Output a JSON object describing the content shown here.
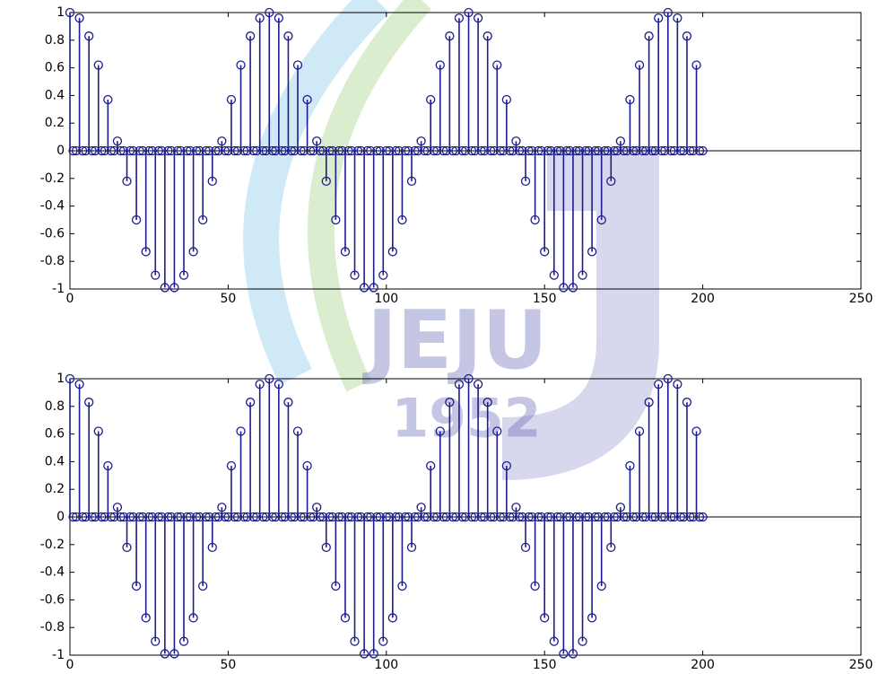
{
  "watermark": [
    "JEJU",
    "1952"
  ],
  "chart_data": [
    {
      "type": "stem",
      "color": "#1c1c8c",
      "xlim": [
        0,
        250
      ],
      "xticks": [
        0,
        50,
        100,
        150,
        200,
        250
      ],
      "ylim": [
        -1,
        1
      ],
      "yticks": [
        -1,
        -0.8,
        -0.6,
        -0.4,
        -0.2,
        0,
        0.2,
        0.4,
        0.6,
        0.8,
        1
      ],
      "x": [
        0,
        1,
        2,
        3,
        4,
        5,
        6,
        7,
        8,
        9,
        10,
        11,
        12,
        13,
        14,
        15,
        16,
        17,
        18,
        19,
        20,
        21,
        22,
        23,
        24,
        25,
        26,
        27,
        28,
        29,
        30,
        31,
        32,
        33,
        34,
        35,
        36,
        37,
        38,
        39,
        40,
        41,
        42,
        43,
        44,
        45,
        46,
        47,
        48,
        49,
        50,
        51,
        52,
        53,
        54,
        55,
        56,
        57,
        58,
        59,
        60,
        61,
        62,
        63,
        64,
        65,
        66,
        67,
        68,
        69,
        70,
        71,
        72,
        73,
        74,
        75,
        76,
        77,
        78,
        79,
        80,
        81,
        82,
        83,
        84,
        85,
        86,
        87,
        88,
        89,
        90,
        91,
        92,
        93,
        94,
        95,
        96,
        97,
        98,
        99,
        100,
        101,
        102,
        103,
        104,
        105,
        106,
        107,
        108,
        109,
        110,
        111,
        112,
        113,
        114,
        115,
        116,
        117,
        118,
        119,
        120,
        121,
        122,
        123,
        124,
        125,
        126,
        127,
        128,
        129,
        130,
        131,
        132,
        133,
        134,
        135,
        136,
        137,
        138,
        139,
        140,
        141,
        142,
        143,
        144,
        145,
        146,
        147,
        148,
        149,
        150,
        151,
        152,
        153,
        154,
        155,
        156,
        157,
        158,
        159,
        160,
        161,
        162,
        163,
        164,
        165,
        166,
        167,
        168,
        169,
        170,
        171,
        172,
        173,
        174,
        175,
        176,
        177,
        178,
        179,
        180,
        181,
        182,
        183,
        184,
        185,
        186,
        187,
        188,
        189,
        190,
        191,
        192,
        193,
        194,
        195,
        196,
        197,
        198,
        199,
        200
      ],
      "values": [
        1,
        0,
        0,
        0.96,
        0,
        0,
        0.83,
        0,
        0,
        0.62,
        0,
        0,
        0.37,
        0,
        0,
        0.07,
        0,
        0,
        -0.22,
        0,
        0,
        -0.5,
        0,
        0,
        -0.73,
        0,
        0,
        -0.9,
        0,
        0,
        -0.99,
        0,
        0,
        -0.99,
        0,
        0,
        -0.9,
        0,
        0,
        -0.73,
        0,
        0,
        -0.5,
        0,
        0,
        -0.22,
        0,
        0,
        0.07,
        0,
        0,
        0.37,
        0,
        0,
        0.62,
        0,
        0,
        0.83,
        0,
        0,
        0.96,
        0,
        0,
        1,
        0,
        0,
        0.96,
        0,
        0,
        0.83,
        0,
        0,
        0.62,
        0,
        0,
        0.37,
        0,
        0,
        0.07,
        0,
        0,
        -0.22,
        0,
        0,
        -0.5,
        0,
        0,
        -0.73,
        0,
        0,
        -0.9,
        0,
        0,
        -0.99,
        0,
        0,
        -0.99,
        0,
        0,
        -0.9,
        0,
        0,
        -0.73,
        0,
        0,
        -0.5,
        0,
        0,
        -0.22,
        0,
        0,
        0.07,
        0,
        0,
        0.37,
        0,
        0,
        0.62,
        0,
        0,
        0.83,
        0,
        0,
        0.96,
        0,
        0,
        1,
        0,
        0,
        0.96,
        0,
        0,
        0.83,
        0,
        0,
        0.62,
        0,
        0,
        0.37,
        0,
        0,
        0.07,
        0,
        0,
        -0.22,
        0,
        0,
        -0.5,
        0,
        0,
        -0.73,
        0,
        0,
        -0.9,
        0,
        0,
        -0.99,
        0,
        0,
        -0.99,
        0,
        0,
        -0.9,
        0,
        0,
        -0.73,
        0,
        0,
        -0.5,
        0,
        0,
        -0.22,
        0,
        0,
        0.07,
        0,
        0,
        0.37,
        0,
        0,
        0.62,
        0,
        0,
        0.83,
        0,
        0,
        0.96,
        0,
        0,
        1,
        0,
        0,
        0.96,
        0,
        0,
        0.83,
        0,
        0,
        0.62,
        0,
        0
      ]
    },
    {
      "type": "stem",
      "color": "#1c1c8c",
      "xlim": [
        0,
        250
      ],
      "xticks": [
        0,
        50,
        100,
        150,
        200,
        250
      ],
      "ylim": [
        -1,
        1
      ],
      "yticks": [
        -1,
        -0.8,
        -0.6,
        -0.4,
        -0.2,
        0,
        0.2,
        0.4,
        0.6,
        0.8,
        1
      ],
      "x": [
        0,
        1,
        2,
        3,
        4,
        5,
        6,
        7,
        8,
        9,
        10,
        11,
        12,
        13,
        14,
        15,
        16,
        17,
        18,
        19,
        20,
        21,
        22,
        23,
        24,
        25,
        26,
        27,
        28,
        29,
        30,
        31,
        32,
        33,
        34,
        35,
        36,
        37,
        38,
        39,
        40,
        41,
        42,
        43,
        44,
        45,
        46,
        47,
        48,
        49,
        50,
        51,
        52,
        53,
        54,
        55,
        56,
        57,
        58,
        59,
        60,
        61,
        62,
        63,
        64,
        65,
        66,
        67,
        68,
        69,
        70,
        71,
        72,
        73,
        74,
        75,
        76,
        77,
        78,
        79,
        80,
        81,
        82,
        83,
        84,
        85,
        86,
        87,
        88,
        89,
        90,
        91,
        92,
        93,
        94,
        95,
        96,
        97,
        98,
        99,
        100,
        101,
        102,
        103,
        104,
        105,
        106,
        107,
        108,
        109,
        110,
        111,
        112,
        113,
        114,
        115,
        116,
        117,
        118,
        119,
        120,
        121,
        122,
        123,
        124,
        125,
        126,
        127,
        128,
        129,
        130,
        131,
        132,
        133,
        134,
        135,
        136,
        137,
        138,
        139,
        140,
        141,
        142,
        143,
        144,
        145,
        146,
        147,
        148,
        149,
        150,
        151,
        152,
        153,
        154,
        155,
        156,
        157,
        158,
        159,
        160,
        161,
        162,
        163,
        164,
        165,
        166,
        167,
        168,
        169,
        170,
        171,
        172,
        173,
        174,
        175,
        176,
        177,
        178,
        179,
        180,
        181,
        182,
        183,
        184,
        185,
        186,
        187,
        188,
        189,
        190,
        191,
        192,
        193,
        194,
        195,
        196,
        197,
        198,
        199,
        200
      ],
      "values": [
        1,
        0,
        0,
        0.96,
        0,
        0,
        0.83,
        0,
        0,
        0.62,
        0,
        0,
        0.37,
        0,
        0,
        0.07,
        0,
        0,
        -0.22,
        0,
        0,
        -0.5,
        0,
        0,
        -0.73,
        0,
        0,
        -0.9,
        0,
        0,
        -0.99,
        0,
        0,
        -0.99,
        0,
        0,
        -0.9,
        0,
        0,
        -0.73,
        0,
        0,
        -0.5,
        0,
        0,
        -0.22,
        0,
        0,
        0.07,
        0,
        0,
        0.37,
        0,
        0,
        0.62,
        0,
        0,
        0.83,
        0,
        0,
        0.96,
        0,
        0,
        1,
        0,
        0,
        0.96,
        0,
        0,
        0.83,
        0,
        0,
        0.62,
        0,
        0,
        0.37,
        0,
        0,
        0.07,
        0,
        0,
        -0.22,
        0,
        0,
        -0.5,
        0,
        0,
        -0.73,
        0,
        0,
        -0.9,
        0,
        0,
        -0.99,
        0,
        0,
        -0.99,
        0,
        0,
        -0.9,
        0,
        0,
        -0.73,
        0,
        0,
        -0.5,
        0,
        0,
        -0.22,
        0,
        0,
        0.07,
        0,
        0,
        0.37,
        0,
        0,
        0.62,
        0,
        0,
        0.83,
        0,
        0,
        0.96,
        0,
        0,
        1,
        0,
        0,
        0.96,
        0,
        0,
        0.83,
        0,
        0,
        0.62,
        0,
        0,
        0.37,
        0,
        0,
        0.07,
        0,
        0,
        -0.22,
        0,
        0,
        -0.5,
        0,
        0,
        -0.73,
        0,
        0,
        -0.9,
        0,
        0,
        -0.99,
        0,
        0,
        -0.99,
        0,
        0,
        -0.9,
        0,
        0,
        -0.73,
        0,
        0,
        -0.5,
        0,
        0,
        -0.22,
        0,
        0,
        0.07,
        0,
        0,
        0.37,
        0,
        0,
        0.62,
        0,
        0,
        0.83,
        0,
        0,
        0.96,
        0,
        0,
        1,
        0,
        0,
        0.96,
        0,
        0,
        0.83,
        0,
        0,
        0.62,
        0,
        0
      ]
    }
  ]
}
